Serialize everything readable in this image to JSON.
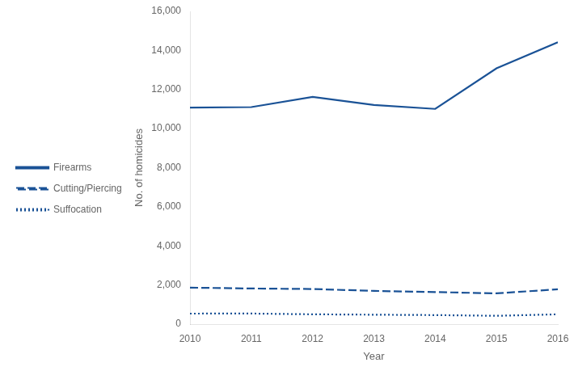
{
  "chart_data": {
    "type": "line",
    "x": [
      2010,
      2011,
      2012,
      2013,
      2014,
      2015,
      2016
    ],
    "xlabel": "Year",
    "ylabel": "No. of homicides",
    "xlim": [
      2010,
      2016
    ],
    "xticks": [
      2010,
      2011,
      2012,
      2013,
      2014,
      2015,
      2016
    ],
    "ylim": [
      0,
      16000
    ],
    "yticks": [
      0,
      {
        "value": 2000,
        "label": "2,000"
      },
      {
        "value": 4000,
        "label": "4,000"
      },
      {
        "value": 6000,
        "label": "6,000"
      },
      {
        "value": 8000,
        "label": "8,000"
      },
      {
        "value": 10000,
        "label": "10,000"
      },
      {
        "value": 12000,
        "label": "12,000"
      },
      {
        "value": 14000,
        "label": "14,000"
      },
      {
        "value": 16000,
        "label": "16,000"
      }
    ],
    "grid": false,
    "legend": "left",
    "series": [
      {
        "name": "Firearms",
        "color": "#1a5296",
        "line_style": "solid",
        "values": [
          11078,
          11101,
          11622,
          11208,
          11008,
          13083,
          14415
        ]
      },
      {
        "name": "Cutting/Piercing",
        "color": "#1a5296",
        "line_style": "dashed",
        "values": [
          1866,
          1822,
          1796,
          1700,
          1639,
          1573,
          1781
        ]
      },
      {
        "name": "Suffocation",
        "color": "#1a5296",
        "line_style": "dotted",
        "values": [
          538,
          541,
          502,
          482,
          462,
          425,
          502
        ]
      }
    ]
  }
}
